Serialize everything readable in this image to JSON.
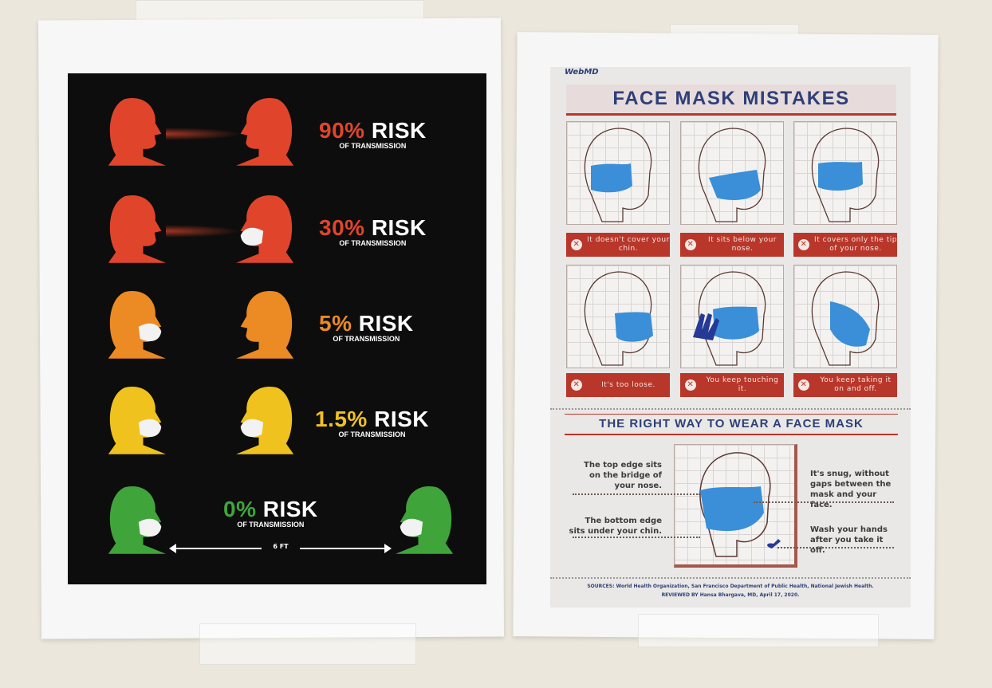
{
  "left_poster": {
    "rows": [
      {
        "percent": "90%",
        "word": "RISK",
        "sub": "OF TRANSMISSION",
        "color": "#e0452b",
        "left_mask": false,
        "right_mask": false
      },
      {
        "percent": "30%",
        "word": "RISK",
        "sub": "OF TRANSMISSION",
        "color": "#e0452b",
        "left_mask": false,
        "right_mask": true
      },
      {
        "percent": "5%",
        "word": "RISK",
        "sub": "OF TRANSMISSION",
        "color": "#ec8a24",
        "left_mask": true,
        "right_mask": false
      },
      {
        "percent": "1.5%",
        "word": "RISK",
        "sub": "OF TRANSMISSION",
        "color": "#f0c21e",
        "left_mask": true,
        "right_mask": true
      },
      {
        "percent": "0%",
        "word": "RISK",
        "sub": "OF TRANSMISSION",
        "color": "#3fa53a",
        "left_mask": true,
        "right_mask": true
      }
    ],
    "distance_label": "6 FT"
  },
  "right_poster": {
    "logo": "WebMD",
    "title": "FACE MASK MISTAKES",
    "mistakes": [
      {
        "text": "It doesn't cover your chin."
      },
      {
        "text": "It sits below your nose."
      },
      {
        "text": "It covers only the tip of your nose."
      },
      {
        "text": "It's too loose."
      },
      {
        "text": "You keep touching it."
      },
      {
        "text": "You keep taking it on and off."
      }
    ],
    "right_way_title": "THE RIGHT WAY TO WEAR A FACE MASK",
    "tips": {
      "top_edge": "The top edge sits on the bridge of your nose.",
      "bottom_edge": "The bottom edge sits under your chin.",
      "snug": "It's snug, without gaps between the mask and your face.",
      "wash": "Wash your hands after you take it off."
    },
    "sources": "SOURCES: World Health Organization, San Francisco Department of Public Health, National Jewish Health.",
    "reviewed": "REVIEWED BY Hansa Bhargava, MD, April 17, 2020.",
    "colors": {
      "accent_red": "#b9362a",
      "title_blue": "#2e3f78",
      "mask_blue": "#3a8fd8"
    }
  }
}
